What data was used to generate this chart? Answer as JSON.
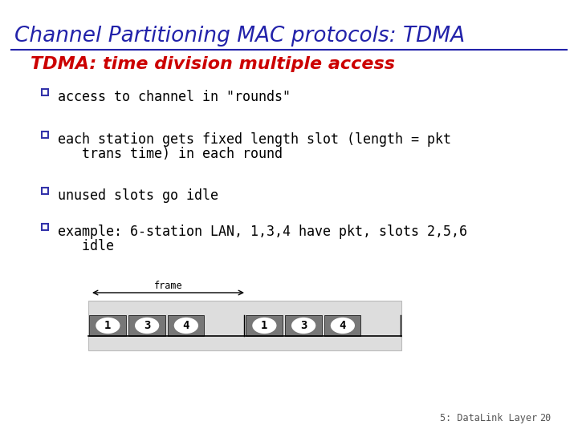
{
  "title": "Channel Partitioning MAC protocols: TDMA",
  "title_color": "#2222AA",
  "subtitle": "TDMA: time division multiple access",
  "subtitle_color": "#CC0000",
  "bullet_lines": [
    [
      "access to channel in \"rounds\""
    ],
    [
      "each station gets fixed length slot (length = pkt",
      "   trans time) in each round"
    ],
    [
      "unused slots go idle"
    ],
    [
      "example: 6-station LAN, 1,3,4 have pkt, slots 2,5,6",
      "   idle"
    ]
  ],
  "bullet_color": "#000000",
  "bullet_marker_color": "#3333AA",
  "background_color": "#FFFFFF",
  "frame_bg": "#DDDDDD",
  "slot_bg": "#777777",
  "slots": [
    "1",
    "3",
    "4",
    "",
    "1",
    "3",
    "4",
    ""
  ],
  "footnote": "5: DataLink Layer",
  "page_num": "20",
  "footnote_color": "#555555"
}
